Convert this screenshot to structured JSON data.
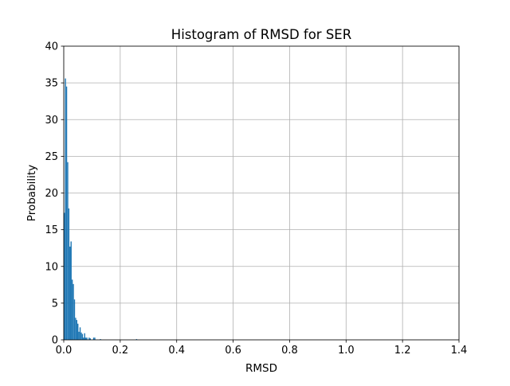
{
  "chart_data": {
    "type": "bar",
    "title": "Histogram of RMSD for SER",
    "xlabel": "RMSD",
    "ylabel": "Probability",
    "xlim": [
      0.0,
      1.4
    ],
    "ylim": [
      0,
      40
    ],
    "grid": true,
    "bar_color": "#1f77b4",
    "bin_width": 0.004,
    "x_ticks": [
      "0.0",
      "0.2",
      "0.4",
      "0.6",
      "0.8",
      "1.0",
      "1.2",
      "1.4"
    ],
    "x_tick_values": [
      0.0,
      0.2,
      0.4,
      0.6,
      0.8,
      1.0,
      1.2,
      1.4
    ],
    "y_ticks": [
      "0",
      "5",
      "10",
      "15",
      "20",
      "25",
      "30",
      "35",
      "40"
    ],
    "y_tick_values": [
      0,
      5,
      10,
      15,
      20,
      25,
      30,
      35,
      40
    ],
    "bins": [
      {
        "x": 0.0,
        "value": 17.3
      },
      {
        "x": 0.004,
        "value": 35.6
      },
      {
        "x": 0.008,
        "value": 34.5
      },
      {
        "x": 0.012,
        "value": 24.2
      },
      {
        "x": 0.016,
        "value": 17.9
      },
      {
        "x": 0.02,
        "value": 12.7
      },
      {
        "x": 0.024,
        "value": 13.4
      },
      {
        "x": 0.028,
        "value": 8.2
      },
      {
        "x": 0.032,
        "value": 7.6
      },
      {
        "x": 0.036,
        "value": 5.5
      },
      {
        "x": 0.04,
        "value": 3.0
      },
      {
        "x": 0.044,
        "value": 2.7
      },
      {
        "x": 0.048,
        "value": 2.2
      },
      {
        "x": 0.052,
        "value": 1.1
      },
      {
        "x": 0.056,
        "value": 1.7
      },
      {
        "x": 0.06,
        "value": 1.0
      },
      {
        "x": 0.064,
        "value": 0.8
      },
      {
        "x": 0.068,
        "value": 0.3
      },
      {
        "x": 0.072,
        "value": 0.9
      },
      {
        "x": 0.076,
        "value": 0.3
      },
      {
        "x": 0.08,
        "value": 0.3
      },
      {
        "x": 0.088,
        "value": 0.3
      },
      {
        "x": 0.092,
        "value": 0.2
      },
      {
        "x": 0.104,
        "value": 0.3
      },
      {
        "x": 0.108,
        "value": 0.3
      },
      {
        "x": 0.128,
        "value": 0.1
      },
      {
        "x": 0.256,
        "value": 0.1
      }
    ]
  }
}
